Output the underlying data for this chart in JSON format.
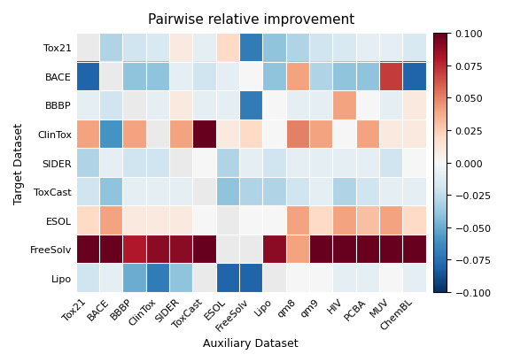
{
  "title": "Pairwise relative improvement",
  "xlabel": "Auxiliary Dataset",
  "ylabel": "Target Dataset",
  "row_labels": [
    "Tox21",
    "BACE",
    "BBBP",
    "ClinTox",
    "SIDER",
    "ToxCast",
    "ESOL",
    "FreeSolv",
    "Lipo"
  ],
  "col_labels": [
    "Tox21",
    "BACE",
    "BBBP",
    "ClinTox",
    "SIDER",
    "ToxCast",
    "ESOL",
    "FreeSolv",
    "Lipo",
    "qm8",
    "qm9",
    "HIV",
    "PCBA",
    "MUV",
    "ChemBL"
  ],
  "vmin": -0.1,
  "vmax": 0.1,
  "data": [
    [
      null,
      -0.03,
      -0.02,
      -0.015,
      0.01,
      -0.01,
      0.02,
      -0.07,
      -0.04,
      -0.03,
      -0.02,
      -0.015,
      -0.01,
      -0.01,
      -0.015
    ],
    [
      -0.08,
      null,
      -0.04,
      -0.04,
      -0.01,
      -0.02,
      -0.01,
      0.0,
      -0.04,
      0.04,
      -0.03,
      -0.04,
      -0.04,
      0.07,
      -0.08
    ],
    [
      -0.01,
      -0.02,
      null,
      -0.01,
      0.01,
      -0.01,
      -0.01,
      -0.07,
      0.0,
      -0.01,
      -0.01,
      0.04,
      0.0,
      -0.01,
      0.01
    ],
    [
      0.04,
      -0.06,
      0.04,
      null,
      0.04,
      0.1,
      0.01,
      0.02,
      0.0,
      0.05,
      0.04,
      0.0,
      0.04,
      0.01,
      0.01
    ],
    [
      -0.03,
      -0.01,
      -0.02,
      -0.02,
      null,
      0.0,
      -0.03,
      -0.01,
      -0.02,
      -0.01,
      -0.01,
      -0.01,
      -0.01,
      -0.02,
      0.0
    ],
    [
      -0.02,
      -0.04,
      -0.01,
      -0.01,
      -0.01,
      null,
      -0.04,
      -0.03,
      -0.03,
      -0.02,
      -0.01,
      -0.03,
      -0.02,
      -0.01,
      -0.01
    ],
    [
      0.02,
      0.04,
      0.01,
      0.01,
      0.01,
      0.0,
      null,
      0.0,
      0.0,
      0.04,
      0.02,
      0.04,
      0.03,
      0.04,
      0.02
    ],
    [
      0.1,
      0.1,
      0.08,
      0.09,
      0.09,
      0.1,
      null,
      null,
      0.09,
      0.04,
      0.1,
      0.1,
      0.1,
      0.1,
      0.1
    ],
    [
      -0.02,
      -0.01,
      -0.05,
      -0.07,
      -0.04,
      null,
      -0.08,
      -0.08,
      null,
      0.0,
      0.0,
      -0.01,
      -0.01,
      0.0,
      -0.01
    ]
  ],
  "colormap": "RdBu_r",
  "nan_color": [
    0.92,
    0.92,
    0.92,
    1.0
  ],
  "figsize": [
    5.7,
    4.1
  ],
  "dpi": 100,
  "cbar_ticks": [
    -0.1,
    -0.075,
    -0.05,
    -0.025,
    0.0,
    0.025,
    0.05,
    0.075,
    0.1
  ],
  "title_fontsize": 11,
  "label_fontsize": 9,
  "tick_fontsize": 8,
  "ytick_fontsize": 8
}
